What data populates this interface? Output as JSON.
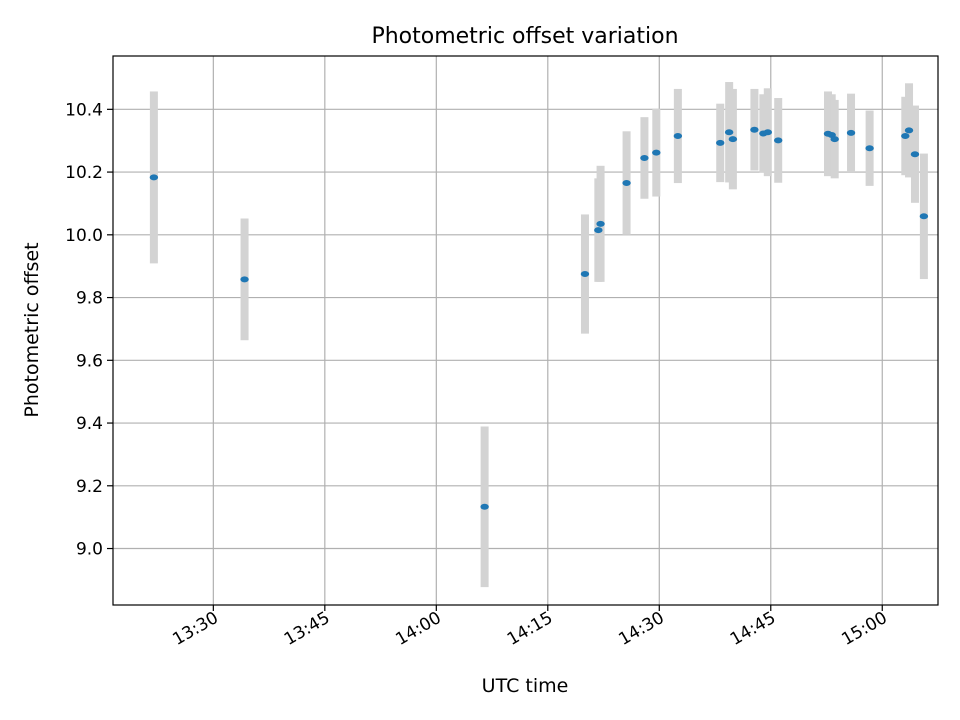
{
  "chart_data": {
    "type": "scatter",
    "title": "Photometric offset variation",
    "xlabel": "UTC time",
    "ylabel": "Photometric offset",
    "xlim": [
      "13:16:30",
      "15:07:30"
    ],
    "ylim": [
      8.82,
      10.57
    ],
    "grid": true,
    "x_ticks": [
      "13:30",
      "13:45",
      "14:00",
      "14:15",
      "14:30",
      "14:45",
      "15:00"
    ],
    "y_ticks": [
      "9.0",
      "9.2",
      "9.4",
      "9.6",
      "9.8",
      "10.0",
      "10.2",
      "10.4"
    ],
    "colors": {
      "points": "#1f77b4",
      "errorbars": "#d3d3d3",
      "grid": "#b0b0b0"
    },
    "series": [
      {
        "x": [
          "13:22:00",
          "13:34:12",
          "14:06:30",
          "14:20:00",
          "14:21:48",
          "14:22:06",
          "14:25:36",
          "14:28:00",
          "14:29:36",
          "14:32:30",
          "14:38:12",
          "14:39:24",
          "14:39:54",
          "14:42:48",
          "14:44:00",
          "14:44:36",
          "14:46:00",
          "14:52:42",
          "14:53:12",
          "14:53:36",
          "14:55:48",
          "14:58:18",
          "15:03:06",
          "15:03:36",
          "15:04:24",
          "15:05:36"
        ],
        "y": [
          10.183,
          9.858,
          9.133,
          9.875,
          10.015,
          10.035,
          10.165,
          10.245,
          10.262,
          10.315,
          10.293,
          10.327,
          10.305,
          10.335,
          10.323,
          10.327,
          10.301,
          10.322,
          10.318,
          10.305,
          10.325,
          10.276,
          10.315,
          10.333,
          10.257,
          10.059
        ],
        "yerr": [
          0.274,
          0.194,
          0.256,
          0.19,
          0.165,
          0.185,
          0.165,
          0.13,
          0.14,
          0.15,
          0.125,
          0.16,
          0.16,
          0.13,
          0.125,
          0.14,
          0.135,
          0.135,
          0.13,
          0.125,
          0.125,
          0.12,
          0.125,
          0.15,
          0.155,
          0.2
        ]
      }
    ]
  }
}
